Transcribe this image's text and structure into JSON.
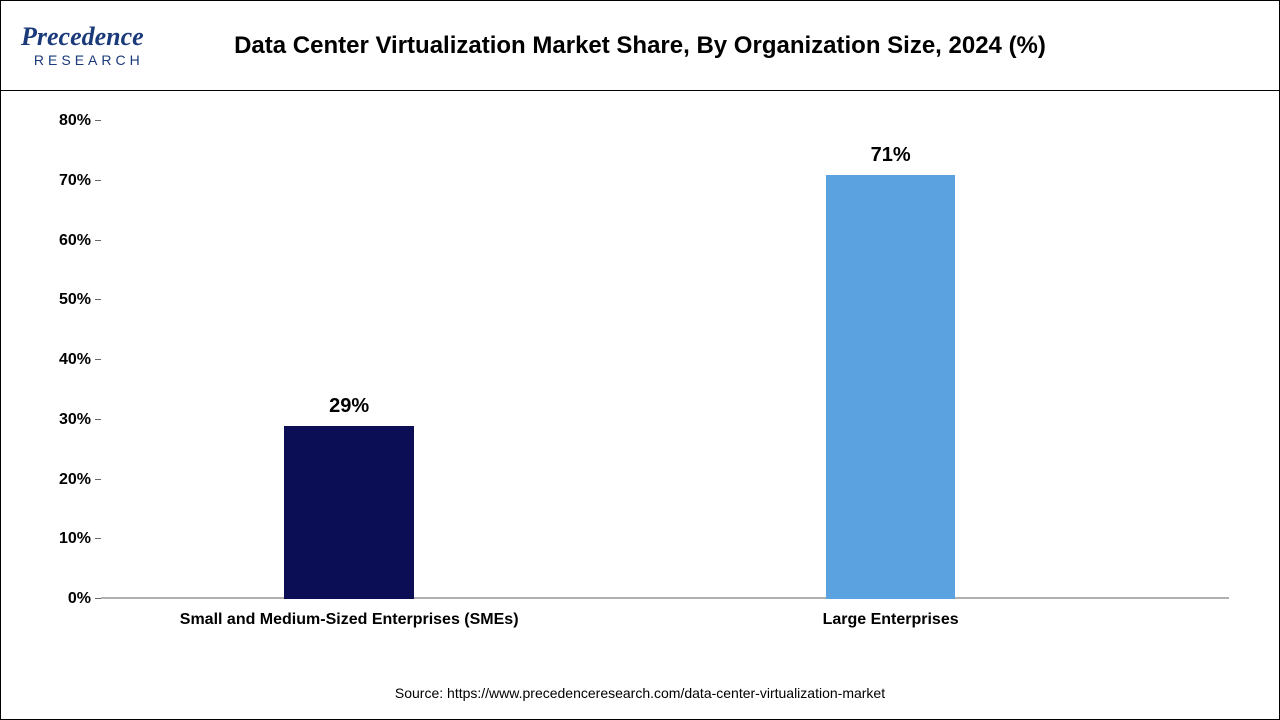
{
  "logo": {
    "main": "Precedence",
    "sub": "RESEARCH"
  },
  "title": "Data Center Virtualization Market Share, By Organization Size, 2024 (%)",
  "chart": {
    "type": "bar",
    "categories": [
      "Small and Medium-Sized Enterprises (SMEs)",
      "Large Enterprises"
    ],
    "values": [
      29,
      71
    ],
    "value_labels": [
      "29%",
      "71%"
    ],
    "bar_colors": [
      "#0b0e55",
      "#5ba3e0"
    ],
    "ylim": [
      0,
      80
    ],
    "ytick_step": 10,
    "y_ticks": [
      "0%",
      "10%",
      "20%",
      "30%",
      "40%",
      "50%",
      "60%",
      "70%",
      "80%"
    ],
    "bar_width_pct": 11.5,
    "bar_positions_pct": [
      22,
      70
    ],
    "background_color": "#ffffff",
    "axis_color": "#b0b0b0",
    "label_fontsize": 16,
    "value_label_fontsize": 20,
    "title_fontsize": 24
  },
  "source": "Source: https://www.precedenceresearch.com/data-center-virtualization-market"
}
